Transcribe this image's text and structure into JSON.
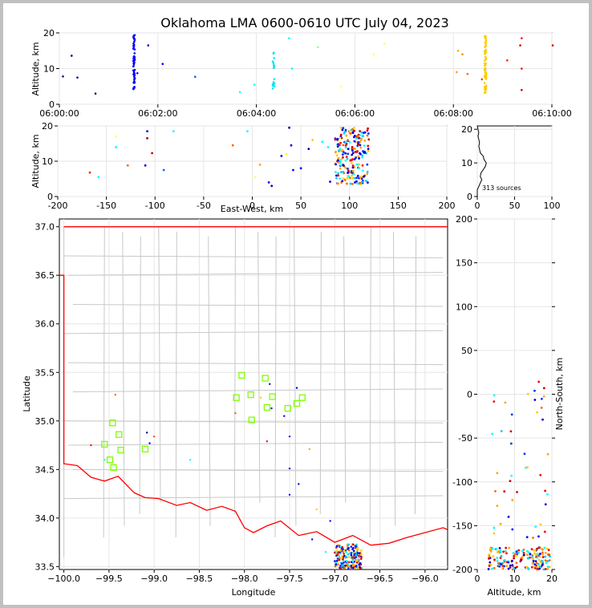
{
  "title": "Oklahoma LMA 0600-0610 UTC July 04, 2023",
  "colors": {
    "border": "#ff0000",
    "county": "#c8c8c8",
    "station": "#7fff00"
  },
  "chart_data": [
    {
      "id": "time-height",
      "type": "scatter",
      "ylabel": "Altitude, km",
      "xlim": [
        0,
        600
      ],
      "ylim": [
        0,
        20
      ],
      "xticks": [
        0,
        120,
        240,
        360,
        480,
        600
      ],
      "xtick_labels": [
        "06:00:00",
        "06:02:00",
        "06:04:00",
        "06:06:00",
        "06:08:00",
        "06:10:00"
      ],
      "yticks": [
        0,
        10,
        20
      ],
      "grid": true
    },
    {
      "id": "east-west",
      "type": "scatter",
      "xlabel": "East-West, km",
      "ylabel": "Altitude, km",
      "xlim": [
        -200,
        200
      ],
      "ylim": [
        0,
        20
      ],
      "xticks": [
        -200,
        -150,
        -100,
        -50,
        0,
        50,
        100,
        150,
        200
      ],
      "yticks": [
        0,
        10,
        20
      ],
      "grid": true
    },
    {
      "id": "histogram",
      "type": "line",
      "xlim": [
        0,
        100
      ],
      "ylim": [
        0,
        21
      ],
      "xticks": [
        0,
        50,
        100
      ],
      "yticks": [
        0,
        10,
        20
      ],
      "annotation": "313 sources",
      "grid": true
    },
    {
      "id": "plan-view",
      "type": "scatter",
      "xlabel": "Longitude",
      "ylabel": "Latitude",
      "xlim": [
        -100.05,
        -95.75
      ],
      "ylim": [
        33.47,
        37.08
      ],
      "xticks": [
        -100.0,
        -99.5,
        -99.0,
        -98.5,
        -98.0,
        -97.5,
        -97.0,
        -96.5,
        -96.0
      ],
      "xtick_labels": [
        "−100.0",
        "−99.5",
        "−99.0",
        "−98.5",
        "−98.0",
        "−97.5",
        "−97.0",
        "−96.5",
        "−96.0"
      ],
      "yticks": [
        33.5,
        34.0,
        34.5,
        35.0,
        35.5,
        36.0,
        36.5,
        37.0
      ],
      "ytick_labels": [
        "33.5",
        "34.0",
        "34.5",
        "35.0",
        "35.5",
        "36.0",
        "36.5",
        "37.0"
      ],
      "stations": [
        [
          -98.03,
          35.47
        ],
        [
          -97.77,
          35.44
        ],
        [
          -97.93,
          35.27
        ],
        [
          -98.09,
          35.24
        ],
        [
          -97.69,
          35.25
        ],
        [
          -97.36,
          35.24
        ],
        [
          -97.42,
          35.18
        ],
        [
          -97.75,
          35.14
        ],
        [
          -97.52,
          35.13
        ],
        [
          -97.92,
          35.01
        ],
        [
          -99.46,
          34.98
        ],
        [
          -99.39,
          34.86
        ],
        [
          -99.55,
          34.76
        ],
        [
          -99.37,
          34.7
        ],
        [
          -99.1,
          34.71
        ],
        [
          -99.49,
          34.6
        ],
        [
          -99.45,
          34.52
        ]
      ],
      "grid": true
    },
    {
      "id": "north-south",
      "type": "scatter",
      "xlabel": "Altitude, km",
      "ylabel": "North-South, km",
      "xlim": [
        0,
        20
      ],
      "ylim": [
        -200,
        200
      ],
      "xticks": [
        0,
        10,
        20
      ],
      "yticks": [
        -200,
        -150,
        -100,
        -50,
        0,
        50,
        100,
        150,
        200
      ],
      "grid": true
    }
  ]
}
